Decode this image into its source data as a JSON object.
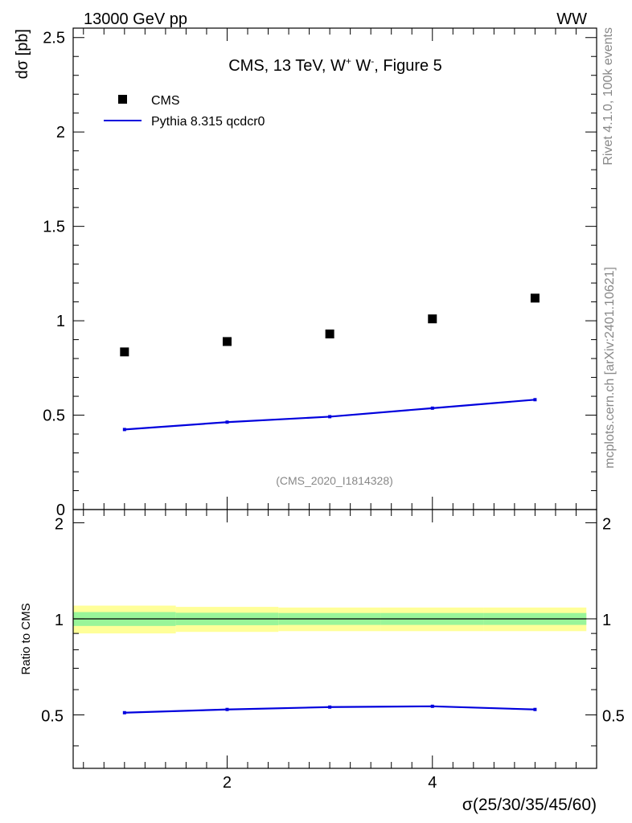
{
  "header": {
    "left": "13000 GeV pp",
    "right": "WW"
  },
  "side_labels": {
    "rivet": "Rivet 4.1.0,  100k events",
    "mcplots": "mcplots.cern.ch [arXiv:2401.10621]"
  },
  "colors": {
    "data": "#000000",
    "mc": "#0000dd",
    "band_inner": "#99f599",
    "band_outer": "#ffff99",
    "side_text": "#888888"
  },
  "chart_data": [
    {
      "type": "scatter",
      "panel": "main",
      "title_parts": {
        "prefix": "CMS, 13 TeV, W",
        "sup1": "+",
        "mid": " W",
        "sup2": "-",
        "suffix": ", Figure 5"
      },
      "ylabel": "dσ [pb]",
      "xlabel": "",
      "xlim": [
        0.5,
        5.6
      ],
      "ylim": [
        0,
        2.55
      ],
      "yticks": [
        0,
        0.5,
        1,
        1.5,
        2,
        2.5
      ],
      "ytick_labels": [
        "0",
        "0.5",
        "1",
        "1.5",
        "2",
        "2.5"
      ],
      "legend": {
        "position": "top-left",
        "entries": [
          "CMS",
          "Pythia 8.315 qcdcr0"
        ]
      },
      "watermark": "(CMS_2020_I1814328)",
      "series": [
        {
          "name": "CMS",
          "style": "markers",
          "x": [
            1,
            2,
            3,
            4,
            5
          ],
          "values": [
            0.835,
            0.89,
            0.93,
            1.01,
            1.12
          ]
        },
        {
          "name": "Pythia 8.315 qcdcr0",
          "style": "line",
          "x": [
            1,
            2,
            3,
            4,
            5
          ],
          "values": [
            0.424,
            0.463,
            0.492,
            0.537,
            0.582
          ]
        }
      ]
    },
    {
      "type": "line",
      "panel": "ratio",
      "ylabel": "Ratio to CMS",
      "xlabel": "σ(25/30/35/45/60)",
      "xlim": [
        0.5,
        5.6
      ],
      "ylim": [
        0.34,
        2.2
      ],
      "yticks": [
        0.5,
        1,
        2
      ],
      "ytick_labels": [
        "0.5",
        "1",
        "2"
      ],
      "xticks": [
        2,
        4
      ],
      "xtick_labels": [
        "2",
        "4"
      ],
      "bands": {
        "edges": [
          0.5,
          1.5,
          2.5,
          3.5,
          4.5,
          5.5
        ],
        "outer": [
          [
            0.9,
            1.1
          ],
          [
            0.91,
            1.09
          ],
          [
            0.915,
            1.085
          ],
          [
            0.915,
            1.085
          ],
          [
            0.915,
            1.085
          ]
        ],
        "inner": [
          [
            0.95,
            1.05
          ],
          [
            0.955,
            1.045
          ],
          [
            0.957,
            1.043
          ],
          [
            0.957,
            1.043
          ],
          [
            0.957,
            1.043
          ]
        ]
      },
      "reference": 1,
      "series": [
        {
          "name": "Pythia 8.315 qcdcr0",
          "x": [
            1,
            2,
            3,
            4,
            5
          ],
          "values": [
            0.508,
            0.52,
            0.529,
            0.532,
            0.52
          ]
        }
      ]
    }
  ]
}
